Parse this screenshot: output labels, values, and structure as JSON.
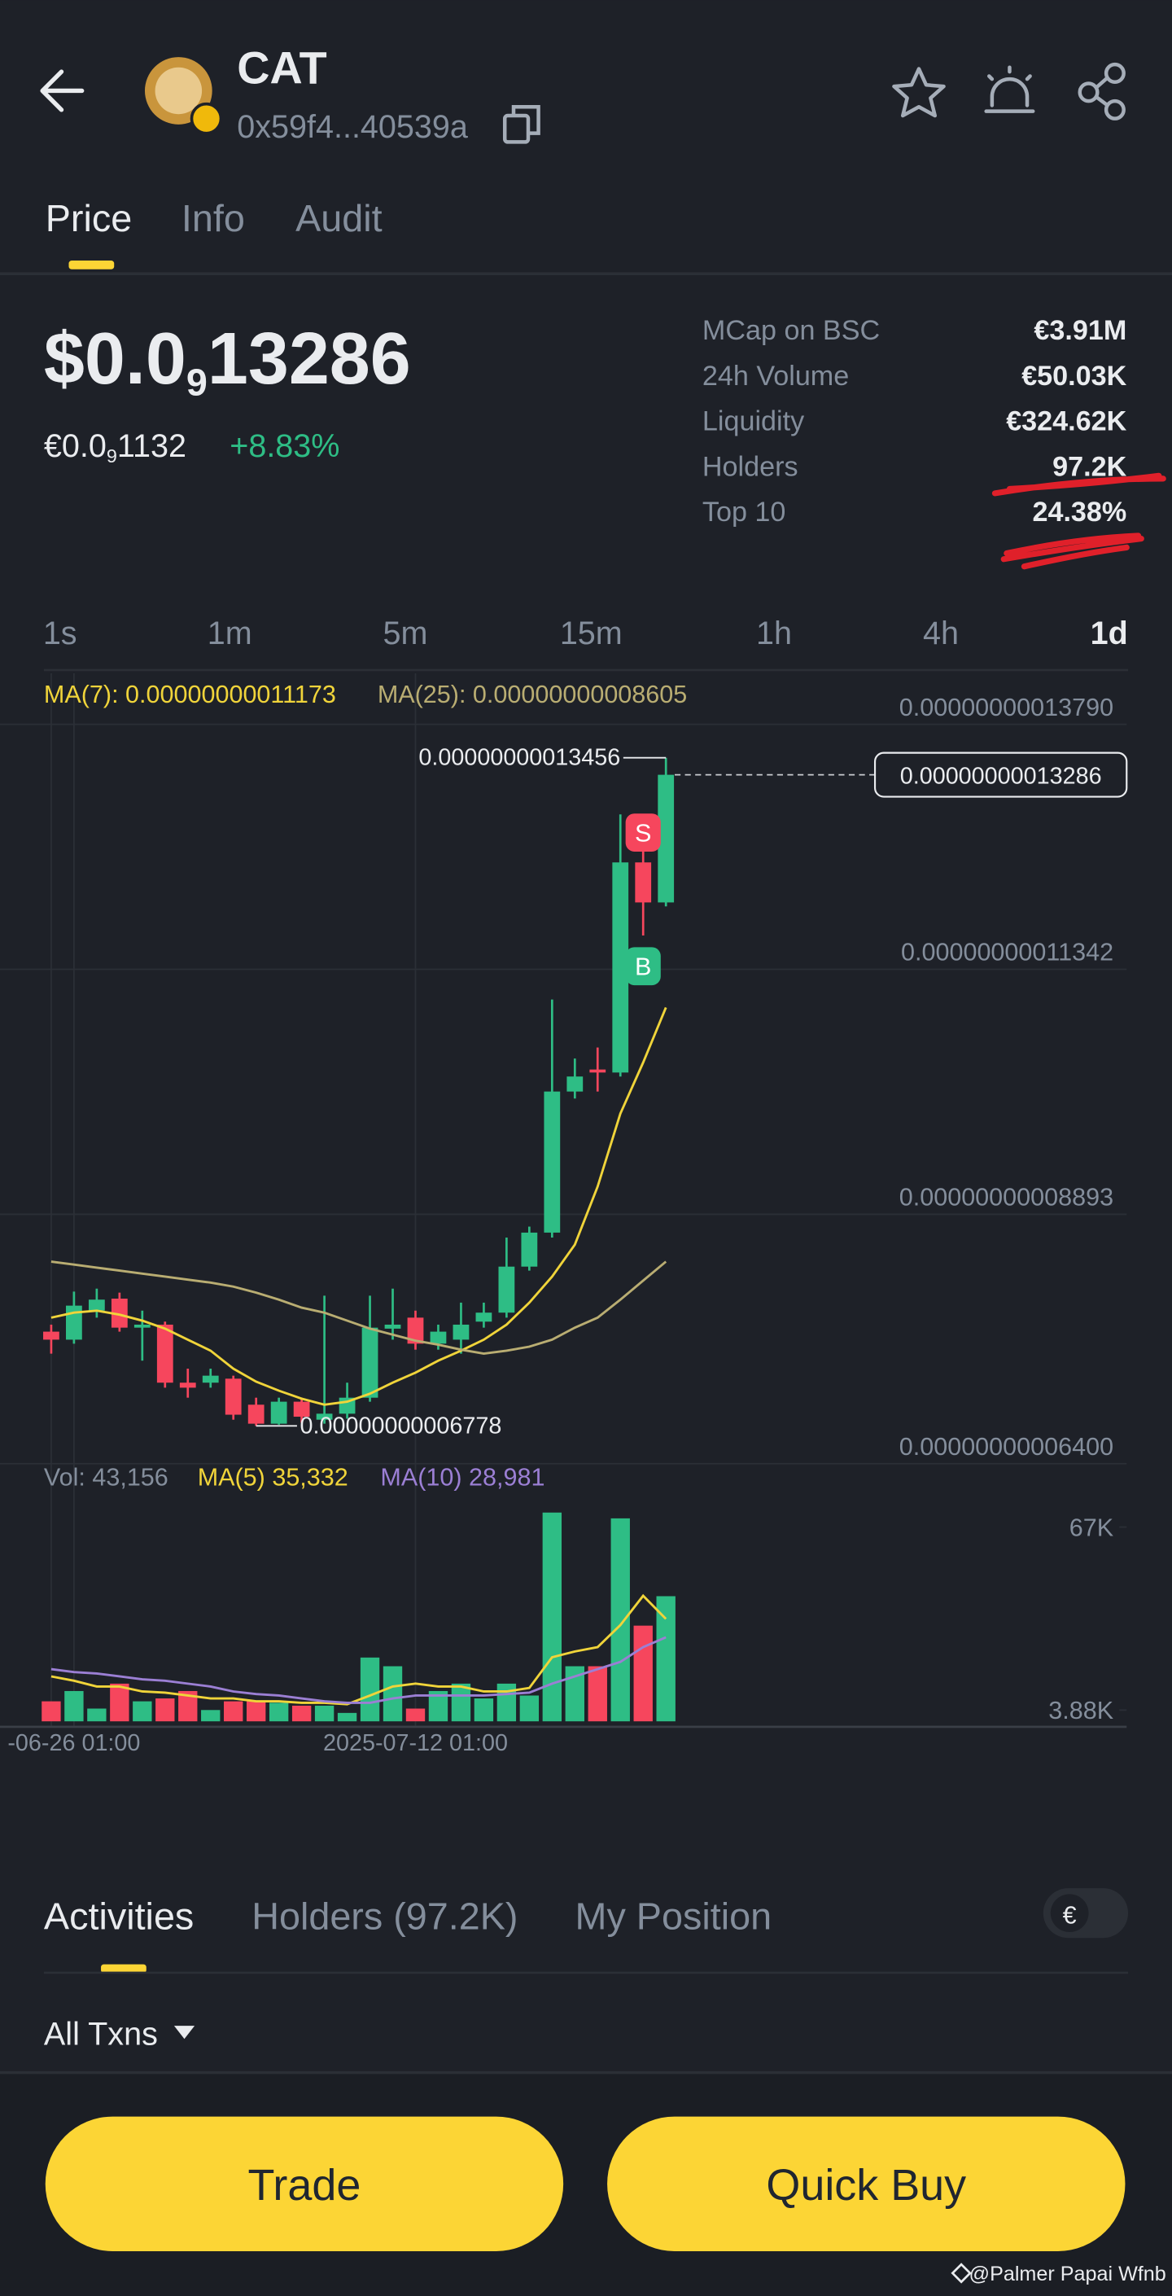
{
  "header": {
    "title": "CAT",
    "address": "0x59f4...40539a"
  },
  "tabs": [
    "Price",
    "Info",
    "Audit"
  ],
  "price": {
    "prefix": "$0.0",
    "zeros": "9",
    "digits": "13286"
  },
  "fiat": {
    "prefix": "€0.0",
    "zeros": "9",
    "digits": "1132",
    "change": "+8.83%"
  },
  "stats": [
    {
      "label": "MCap on BSC",
      "value": "€3.91M"
    },
    {
      "label": "24h Volume",
      "value": "€50.03K"
    },
    {
      "label": "Liquidity",
      "value": "€324.62K"
    },
    {
      "label": "Holders",
      "value": "97.2K"
    },
    {
      "label": "Top 10",
      "value": "24.38%"
    }
  ],
  "intervals": [
    "1s",
    "1m",
    "5m",
    "15m",
    "1h",
    "4h",
    "1d"
  ],
  "active_interval": "1d",
  "chart_data": {
    "type": "candlestick",
    "up_color": "#2ebd85",
    "down_color": "#f6465d",
    "categories": [
      null,
      "-06-26 01:00",
      null,
      null,
      null,
      null,
      null,
      null,
      null,
      null,
      null,
      null,
      null,
      null,
      null,
      null,
      "2025-07-12 01:00",
      null,
      null,
      null,
      null,
      null,
      null,
      null,
      null,
      null,
      null,
      null
    ],
    "open": [
      7.72e-11,
      7.64e-11,
      7.93e-11,
      8.05e-11,
      7.76e-11,
      7.79e-11,
      7.21e-11,
      7.21e-11,
      7.25e-11,
      6.99e-11,
      6.8e-11,
      7.02e-11,
      6.84e-11,
      6.9e-11,
      7.06e-11,
      7.75e-11,
      7.86e-11,
      7.6e-11,
      7.64e-11,
      7.82e-11,
      7.91e-11,
      8.37e-11,
      8.71e-11,
      1.012e-10,
      1.034e-10,
      1.031e-10,
      1.241e-10,
      1.201e-10
    ],
    "high": [
      7.79e-11,
      8.12e-11,
      8.15e-11,
      8.11e-11,
      7.93e-11,
      7.82e-11,
      7.35e-11,
      7.35e-11,
      7.28e-11,
      7.06e-11,
      7.06e-11,
      7.06e-11,
      8.08e-11,
      7.21e-11,
      8.08e-11,
      8.15e-11,
      7.93e-11,
      7.79e-11,
      8.01e-11,
      8.01e-11,
      8.66e-11,
      8.77e-11,
      1.104e-10,
      1.045e-10,
      1.056e-10,
      1.289e-10,
      1.284e-10,
      1.3456e-10
    ],
    "low": [
      7.5e-11,
      7.6e-11,
      7.86e-11,
      7.72e-11,
      7.43e-11,
      7.16e-11,
      7.06e-11,
      7.16e-11,
      6.84e-11,
      6.778e-11,
      6.79e-11,
      6.81e-11,
      6.8e-11,
      6.85e-11,
      7.02e-11,
      7.64e-11,
      7.54e-11,
      7.54e-11,
      7.5e-11,
      7.76e-11,
      7.86e-11,
      8.33e-11,
      8.66e-11,
      1.005e-10,
      1.012e-10,
      1.027e-10,
      1.168e-10,
      1.197e-10
    ],
    "close": [
      7.64e-11,
      7.98e-11,
      8.04e-11,
      7.76e-11,
      7.79e-11,
      7.21e-11,
      7.16e-11,
      7.28e-11,
      6.89e-11,
      6.8e-11,
      7.02e-11,
      6.87e-11,
      6.9e-11,
      7.06e-11,
      7.76e-11,
      7.79e-11,
      7.6e-11,
      7.72e-11,
      7.79e-11,
      7.91e-11,
      8.37e-11,
      8.71e-11,
      1.012e-10,
      1.027e-10,
      1.031e-10,
      1.241e-10,
      1.201e-10,
      1.3286e-10
    ],
    "series": [
      {
        "name": "MA(7): 0.00000000011173",
        "color": "#f0d43a",
        "values": [
          7.86e-11,
          7.91e-11,
          7.93e-11,
          7.89e-11,
          7.83e-11,
          7.75e-11,
          7.64e-11,
          7.53e-11,
          7.35e-11,
          7.22e-11,
          7.13e-11,
          7.05e-11,
          6.99e-11,
          7.02e-11,
          7.1e-11,
          7.21e-11,
          7.31e-11,
          7.43e-11,
          7.53e-11,
          7.64e-11,
          7.79e-11,
          8.01e-11,
          8.27e-11,
          8.59e-11,
          9.17e-11,
          9.9e-11,
          1.041e-10,
          1.096e-10
        ]
      },
      {
        "name": "MA(25): 0.00000000008605",
        "color": "#b9ad72",
        "values": [
          8.42e-11,
          8.39e-11,
          8.36e-11,
          8.33e-11,
          8.3e-11,
          8.27e-11,
          8.24e-11,
          8.21e-11,
          8.17e-11,
          8.11e-11,
          8.04e-11,
          7.96e-11,
          7.91e-11,
          7.83e-11,
          7.75e-11,
          7.69e-11,
          7.63e-11,
          7.59e-11,
          7.54e-11,
          7.5e-11,
          7.53e-11,
          7.57e-11,
          7.64e-11,
          7.76e-11,
          7.86e-11,
          8.04e-11,
          8.23e-11,
          8.42e-11
        ]
      }
    ],
    "ylim": [
      6.4e-11,
      1.43e-10
    ],
    "yticks": [
      {
        "value": 1.379e-10,
        "label": "0.00000000013790"
      },
      {
        "value": 1.1342e-10,
        "label": "0.00000000011342"
      },
      {
        "value": 8.893e-11,
        "label": "0.00000000008893"
      },
      {
        "value": 6.4e-11,
        "label": "0.00000000006400"
      }
    ],
    "high_label": {
      "value": 1.3456e-10,
      "label": "0.00000000013456"
    },
    "low_label": {
      "value": 6.778e-11,
      "label": "0.00000000006778"
    },
    "last_price": {
      "value": 1.3286e-10,
      "label": "0.00000000013286"
    },
    "markers": [
      "S",
      "B"
    ],
    "grid": true,
    "volume": {
      "title": "Vol: 43,156",
      "values": [
        6900,
        10450,
        4400,
        13000,
        6900,
        7900,
        10450,
        3900,
        6900,
        6900,
        6400,
        5400,
        5400,
        2900,
        22000,
        19000,
        4400,
        10450,
        13000,
        7900,
        13000,
        8900,
        72000,
        19000,
        19000,
        70000,
        33000,
        43156
      ],
      "ylim": [
        0,
        73700
      ],
      "yticks": [
        {
          "value": 67000,
          "label": "67K"
        },
        {
          "value": 3880,
          "label": "3.88K"
        }
      ],
      "series": [
        {
          "name": "MA(5) 35,332",
          "color": "#f0d43a",
          "values": [
            15500,
            14000,
            12000,
            12000,
            10300,
            9900,
            8900,
            7900,
            7900,
            6900,
            6900,
            6400,
            6400,
            5900,
            8900,
            12000,
            13000,
            12000,
            12000,
            10300,
            10300,
            11500,
            22100,
            24100,
            25600,
            33200,
            43300,
            35332
          ]
        },
        {
          "name": "MA(10) 28,981",
          "color": "#9b7fd4",
          "values": [
            18000,
            17000,
            16500,
            15500,
            14500,
            14000,
            13000,
            12000,
            10300,
            9400,
            8900,
            7900,
            6900,
            6400,
            6400,
            7900,
            8900,
            8900,
            8900,
            8900,
            9400,
            9900,
            13000,
            15500,
            18000,
            20500,
            25600,
            28981
          ]
        }
      ]
    }
  },
  "bottom_tabs": [
    "Activities",
    "Holders (97.2K)",
    "My Position"
  ],
  "currency": "€",
  "filter": "All Txns",
  "buttons": [
    "Trade",
    "Quick Buy"
  ],
  "watermark": "@Palmer Papai Wfnb"
}
